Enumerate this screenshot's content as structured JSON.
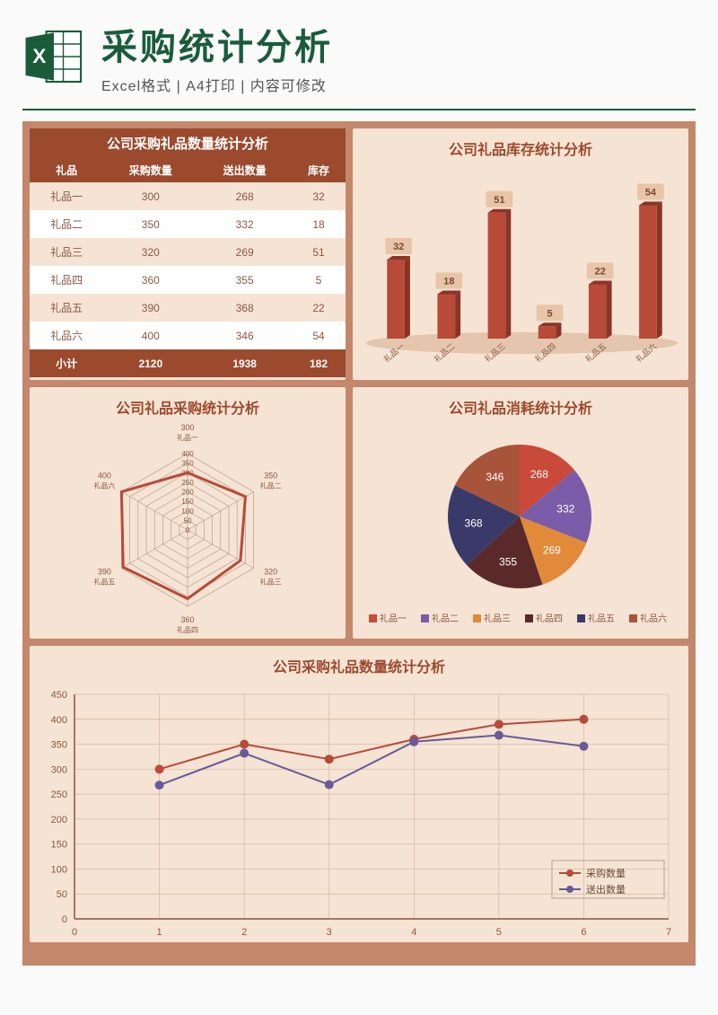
{
  "header": {
    "title": "采购统计分析",
    "subtitle": "Excel格式 | A4打印 | 内容可修改"
  },
  "table": {
    "title": "公司采购礼品数量统计分析",
    "columns": [
      "礼品",
      "采购数量",
      "送出数量",
      "库存"
    ],
    "rows": [
      [
        "礼品一",
        300,
        268,
        32
      ],
      [
        "礼品二",
        350,
        332,
        18
      ],
      [
        "礼品三",
        320,
        269,
        51
      ],
      [
        "礼品四",
        360,
        355,
        5
      ],
      [
        "礼品五",
        390,
        368,
        22
      ],
      [
        "礼品六",
        400,
        346,
        54
      ]
    ],
    "footer": [
      "小计",
      2120,
      1938,
      182
    ],
    "colors": {
      "header_bg": "#9b4a2e",
      "header_fg": "#ffffff",
      "row_odd": "#f5e3d3",
      "row_even": "#ffffff",
      "text": "#8a5842"
    }
  },
  "bar_chart": {
    "type": "bar",
    "title": "公司礼品库存统计分析",
    "categories": [
      "礼品一",
      "礼品二",
      "礼品三",
      "礼品四",
      "礼品五",
      "礼品六"
    ],
    "values": [
      32,
      18,
      51,
      5,
      22,
      54
    ],
    "bar_color": "#b84a3a",
    "bar_top_color": "#8a3428",
    "label_bg": "#e8c4a8",
    "ylim": [
      0,
      60
    ],
    "bar_width_ratio": 0.35
  },
  "radar_chart": {
    "type": "radar",
    "title": "公司礼品采购统计分析",
    "categories": [
      "礼品一",
      "礼品二",
      "礼品三",
      "礼品四",
      "礼品五",
      "礼品六"
    ],
    "values": [
      300,
      350,
      320,
      360,
      390,
      400
    ],
    "rings": [
      0,
      50,
      100,
      150,
      200,
      250,
      300,
      350,
      400
    ],
    "line_color": "#b84a3a",
    "line_width": 3,
    "grid_color": "#b8a090"
  },
  "pie_chart": {
    "type": "pie",
    "title": "公司礼品消耗统计分析",
    "slices": [
      {
        "label": "礼品一",
        "value": 268,
        "color": "#c94a3a"
      },
      {
        "label": "礼品二",
        "value": 332,
        "color": "#7a5ca8"
      },
      {
        "label": "礼品三",
        "value": 269,
        "color": "#e08a3a"
      },
      {
        "label": "礼品四",
        "value": 355,
        "color": "#5a2a2a"
      },
      {
        "label": "礼品五",
        "value": 368,
        "color": "#3a3a6a"
      },
      {
        "label": "礼品六",
        "value": 346,
        "color": "#a8543a"
      }
    ]
  },
  "line_chart": {
    "type": "line",
    "title": "公司采购礼品数量统计分析",
    "x_values": [
      1,
      2,
      3,
      4,
      5,
      6
    ],
    "series": [
      {
        "name": "采购数量",
        "values": [
          300,
          350,
          320,
          360,
          390,
          400
        ],
        "color": "#b84a3a",
        "marker": "circle"
      },
      {
        "name": "送出数量",
        "values": [
          268,
          332,
          269,
          355,
          368,
          346
        ],
        "color": "#6a5a9a",
        "marker": "circle"
      }
    ],
    "xlim": [
      0,
      7
    ],
    "ylim": [
      0,
      450
    ],
    "ytick_step": 50,
    "grid_color": "#d4b8a0"
  },
  "colors": {
    "dashboard_bg": "#c4876b",
    "panel_bg": "#f5e3d3",
    "title_color": "#9b4a2e"
  }
}
